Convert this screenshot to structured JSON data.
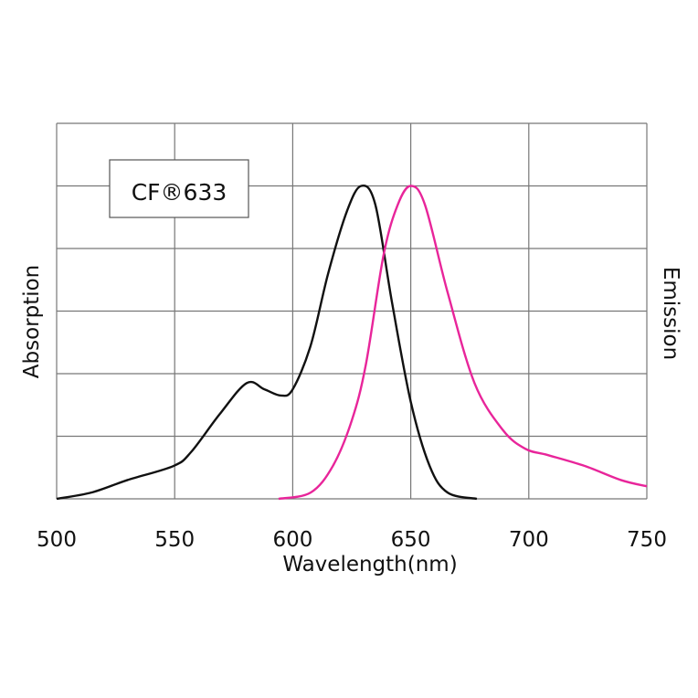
{
  "chart_data": {
    "type": "line",
    "title": "",
    "legend_box": "CF®633",
    "legend_placement": "top-left",
    "xlabel": "Wavelength(nm)",
    "ylabel_left": "Absorption",
    "ylabel_right": "Emission",
    "xlim": [
      500,
      750
    ],
    "ylim": [
      0,
      1.2
    ],
    "x_ticks": [
      500,
      550,
      600,
      650,
      700,
      750
    ],
    "y_gridlines": [
      0,
      0.2,
      0.4,
      0.6,
      0.8,
      1.0,
      1.2
    ],
    "grid": true,
    "series": [
      {
        "name": "Absorption",
        "color": "#111111",
        "x": [
          500,
          514.7,
          530,
          549.5,
          557,
          569,
          580.5,
          588,
          595,
          600,
          607.6,
          615,
          623,
          629,
          635,
          642,
          650,
          658,
          665.6,
          678
        ],
        "y": [
          0,
          0.02,
          0.06,
          0.105,
          0.15,
          0.27,
          0.37,
          0.35,
          0.33,
          0.35,
          0.49,
          0.72,
          0.92,
          1.0,
          0.94,
          0.63,
          0.31,
          0.105,
          0.02,
          0
        ]
      },
      {
        "name": "Emission",
        "color": "#e8259a",
        "x": [
          594,
          607.6,
          617,
          625,
          631,
          638.5,
          644.5,
          650,
          656,
          665.6,
          677,
          689,
          698.5,
          708,
          723.7,
          739,
          750
        ],
        "y": [
          0,
          0.02,
          0.105,
          0.25,
          0.43,
          0.78,
          0.94,
          1.0,
          0.94,
          0.66,
          0.37,
          0.22,
          0.16,
          0.14,
          0.105,
          0.06,
          0.04
        ]
      }
    ]
  }
}
